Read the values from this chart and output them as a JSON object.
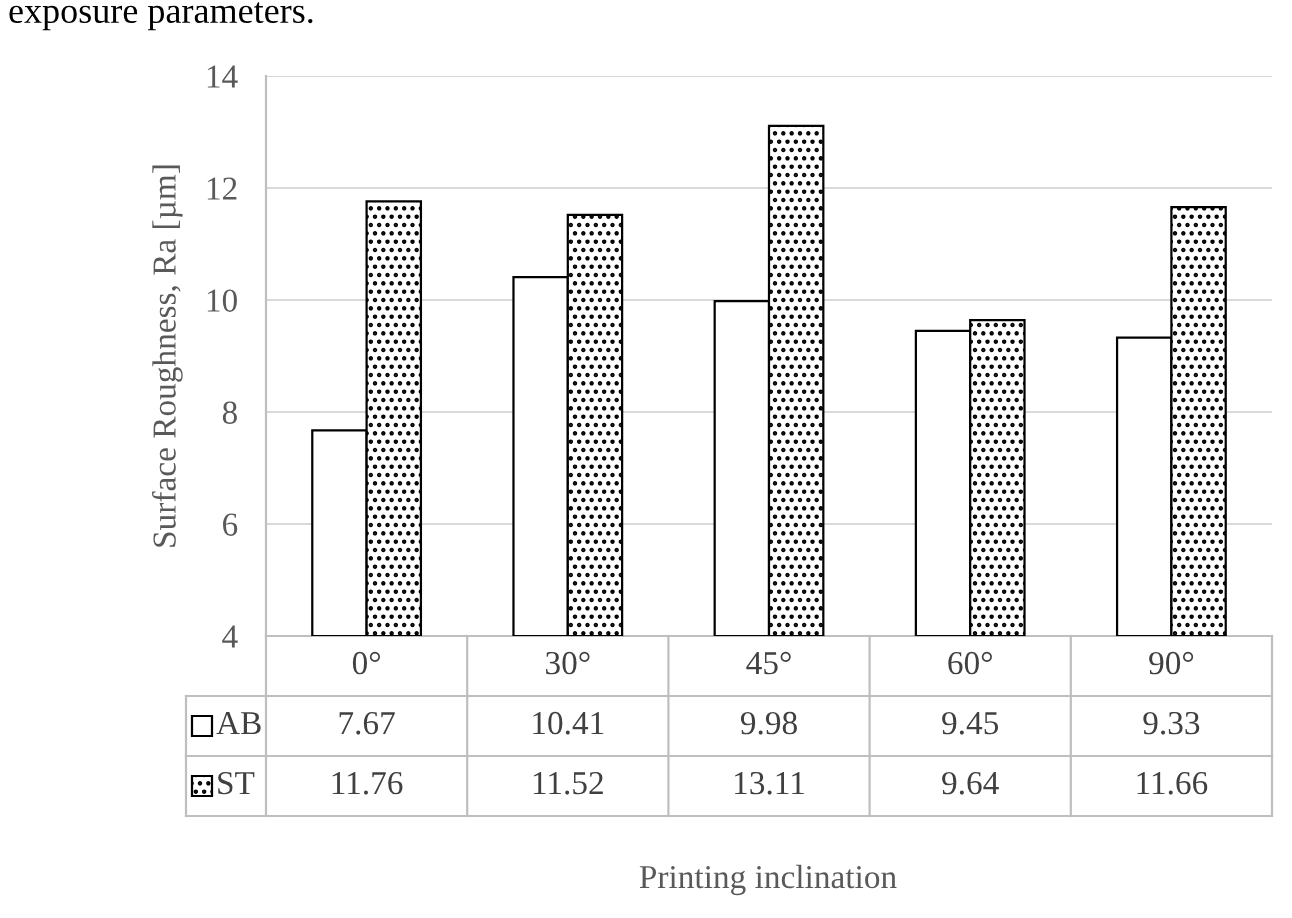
{
  "chart_data": {
    "type": "bar",
    "ylabel": "Surface Roughness, Ra [µm]",
    "annotations": [
      "exposure parameters.",
      "Printing inclination"
    ],
    "categories": [
      "0°",
      "30°",
      "45°",
      "60°",
      "90°"
    ],
    "series": [
      {
        "name": "AB",
        "color": "#ffffff",
        "values": [
          7.67,
          10.41,
          9.98,
          9.45,
          9.33
        ]
      },
      {
        "name": "ST",
        "color": "#000000",
        "values": [
          11.76,
          11.52,
          13.11,
          9.64,
          11.66
        ]
      }
    ],
    "ylim": [
      4,
      14
    ],
    "yticks": [
      4,
      6,
      8,
      10,
      12,
      14
    ],
    "grid": "y",
    "legend": "bottom left",
    "data_labels": true
  }
}
